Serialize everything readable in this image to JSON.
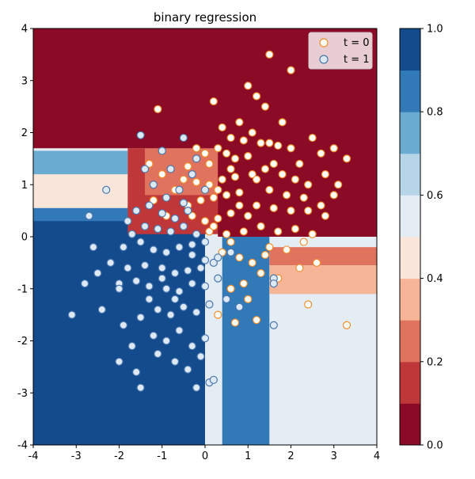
{
  "chart_data": {
    "type": "scatter",
    "title": "binary regression",
    "xlim": [
      -4,
      4
    ],
    "ylim": [
      -4,
      4
    ],
    "xticks": [
      "-4",
      "-3",
      "-2",
      "-1",
      "0",
      "1",
      "2",
      "3",
      "4"
    ],
    "yticks": [
      "-4",
      "-3",
      "-2",
      "-1",
      "0",
      "1",
      "2",
      "3",
      "4"
    ],
    "grid": false,
    "legend_position": "top-right",
    "background": {
      "type": "filled-contour",
      "levels": [
        0.0,
        0.1,
        0.2,
        0.3,
        0.4,
        0.5,
        0.6,
        0.7,
        0.8,
        0.9,
        1.0
      ],
      "colors": [
        "#8b0a25",
        "#c0373a",
        "#e0735e",
        "#f7b597",
        "#fae5da",
        "#e3edf3",
        "#b7d5e8",
        "#6aabd2",
        "#3279b8",
        "#144b8d"
      ],
      "regions": [
        {
          "x": [
            -4,
            4
          ],
          "y": [
            -4,
            4
          ],
          "p": 0.55
        },
        {
          "x": [
            -4,
            0
          ],
          "y": [
            -4,
            0.6
          ],
          "p": 0.95
        },
        {
          "x": [
            0.4,
            1.5
          ],
          "y": [
            -4,
            0
          ],
          "p": 0.85
        },
        {
          "x": [
            1.5,
            4
          ],
          "y": [
            -4,
            0
          ],
          "p": 0.52
        },
        {
          "x": [
            1.5,
            4
          ],
          "y": [
            -0.55,
            -0.2
          ],
          "p": 0.2
        },
        {
          "x": [
            1.5,
            4
          ],
          "y": [
            -1.1,
            -0.55
          ],
          "p": 0.3
        },
        {
          "x": [
            -4,
            0.3
          ],
          "y": [
            0.3,
            0.55
          ],
          "p": 0.85
        },
        {
          "x": [
            -4,
            -1.8
          ],
          "y": [
            0.55,
            1.2
          ],
          "p": 0.45
        },
        {
          "x": [
            -4,
            -1.8
          ],
          "y": [
            1.2,
            1.65
          ],
          "p": 0.75
        },
        {
          "x": [
            -1.8,
            4
          ],
          "y": [
            0.05,
            1.7
          ],
          "p": 0.1
        },
        {
          "x": [
            -1.4,
            0.3
          ],
          "y": [
            0.8,
            1.7
          ],
          "p": 0.25
        },
        {
          "x": [
            -4,
            4
          ],
          "y": [
            1.7,
            4
          ],
          "p": 0.02
        },
        {
          "x": [
            0.3,
            4
          ],
          "y": [
            0.0,
            2.0
          ],
          "p": 0.02
        }
      ]
    },
    "series": [
      {
        "name": "t = 0",
        "color": "#f28e2b",
        "fill": "#ffffff",
        "points": [
          [
            1.5,
            3.5
          ],
          [
            2.0,
            3.2
          ],
          [
            1.0,
            2.9
          ],
          [
            1.2,
            2.7
          ],
          [
            0.2,
            2.6
          ],
          [
            1.4,
            2.5
          ],
          [
            -1.1,
            2.45
          ],
          [
            0.8,
            2.2
          ],
          [
            1.8,
            2.2
          ],
          [
            0.4,
            2.1
          ],
          [
            1.1,
            2.0
          ],
          [
            0.6,
            1.9
          ],
          [
            0.9,
            1.85
          ],
          [
            1.3,
            1.8
          ],
          [
            1.7,
            1.75
          ],
          [
            0.3,
            1.7
          ],
          [
            2.0,
            1.7
          ],
          [
            0.5,
            1.6
          ],
          [
            1.0,
            1.55
          ],
          [
            0.7,
            1.5
          ],
          [
            1.6,
            1.4
          ],
          [
            2.5,
            1.9
          ],
          [
            2.7,
            1.6
          ],
          [
            3.0,
            1.7
          ],
          [
            3.3,
            1.5
          ],
          [
            -0.2,
            1.7
          ],
          [
            0.0,
            1.6
          ],
          [
            1.4,
            1.3
          ],
          [
            1.8,
            1.2
          ],
          [
            2.1,
            1.1
          ],
          [
            2.4,
            1.0
          ],
          [
            2.8,
            1.2
          ],
          [
            3.1,
            1.0
          ],
          [
            1.1,
            1.2
          ],
          [
            0.7,
            1.15
          ],
          [
            0.4,
            1.1
          ],
          [
            0.1,
            1.0
          ],
          [
            -0.2,
            1.05
          ],
          [
            -0.5,
            1.1
          ],
          [
            1.5,
            0.9
          ],
          [
            1.9,
            0.8
          ],
          [
            2.3,
            0.75
          ],
          [
            2.7,
            0.6
          ],
          [
            3.0,
            0.8
          ],
          [
            0.8,
            0.85
          ],
          [
            0.5,
            0.8
          ],
          [
            0.2,
            0.75
          ],
          [
            -0.1,
            0.7
          ],
          [
            1.2,
            0.6
          ],
          [
            1.6,
            0.55
          ],
          [
            2.0,
            0.5
          ],
          [
            2.4,
            0.5
          ],
          [
            2.8,
            0.4
          ],
          [
            1.0,
            0.4
          ],
          [
            0.6,
            0.45
          ],
          [
            0.3,
            0.35
          ],
          [
            -0.3,
            0.4
          ],
          [
            1.3,
            0.2
          ],
          [
            1.7,
            0.1
          ],
          [
            2.1,
            0.15
          ],
          [
            2.5,
            0.05
          ],
          [
            0.9,
            0.1
          ],
          [
            0.5,
            0.05
          ],
          [
            0.1,
            0.1
          ],
          [
            1.5,
            -0.2
          ],
          [
            1.9,
            -0.25
          ],
          [
            2.3,
            -0.1
          ],
          [
            1.1,
            -0.5
          ],
          [
            0.8,
            -0.4
          ],
          [
            0.4,
            -0.3
          ],
          [
            1.3,
            -0.7
          ],
          [
            1.7,
            -0.8
          ],
          [
            2.2,
            -0.6
          ],
          [
            1.0,
            -1.2
          ],
          [
            0.6,
            -1.0
          ],
          [
            0.3,
            -1.5
          ],
          [
            1.2,
            -1.6
          ],
          [
            0.7,
            -1.65
          ],
          [
            2.4,
            -1.3
          ],
          [
            3.3,
            -1.7
          ],
          [
            -1.3,
            1.4
          ],
          [
            -1.0,
            1.2
          ],
          [
            -0.7,
            0.9
          ],
          [
            -0.4,
            0.6
          ],
          [
            0.0,
            0.3
          ],
          [
            -1.2,
            0.7
          ],
          [
            -0.9,
            0.4
          ],
          [
            0.2,
            0.2
          ],
          [
            0.6,
            -0.1
          ],
          [
            1.4,
            -0.35
          ],
          [
            2.6,
            -0.5
          ],
          [
            0.9,
            -0.9
          ],
          [
            1.5,
            1.8
          ],
          [
            0.1,
            1.4
          ],
          [
            0.6,
            1.3
          ],
          [
            -0.4,
            1.35
          ],
          [
            2.2,
            1.4
          ],
          [
            1.2,
            1.1
          ],
          [
            0.3,
            0.9
          ],
          [
            0.8,
            0.6
          ]
        ]
      },
      {
        "name": "t = 1",
        "color": "#4a76ad",
        "fill": "#dde9f5",
        "points": [
          [
            -1.5,
            1.95
          ],
          [
            -1.0,
            1.65
          ],
          [
            -0.5,
            1.9
          ],
          [
            -0.8,
            1.3
          ],
          [
            -0.3,
            1.2
          ],
          [
            -1.2,
            1.0
          ],
          [
            -0.6,
            0.9
          ],
          [
            -0.9,
            0.75
          ],
          [
            -1.3,
            0.6
          ],
          [
            -0.4,
            0.5
          ],
          [
            -1.6,
            0.5
          ],
          [
            -1.0,
            0.45
          ],
          [
            -0.7,
            0.35
          ],
          [
            -2.3,
            0.9
          ],
          [
            -2.7,
            0.4
          ],
          [
            -1.8,
            0.3
          ],
          [
            -1.4,
            0.2
          ],
          [
            -1.1,
            0.15
          ],
          [
            -0.8,
            0.1
          ],
          [
            -0.5,
            0.2
          ],
          [
            -0.2,
            0.05
          ],
          [
            -1.9,
            -0.2
          ],
          [
            -1.5,
            -0.1
          ],
          [
            -1.2,
            -0.25
          ],
          [
            -0.9,
            -0.3
          ],
          [
            -0.6,
            -0.2
          ],
          [
            -0.3,
            -0.35
          ],
          [
            0.0,
            -0.1
          ],
          [
            -2.2,
            -0.5
          ],
          [
            -1.8,
            -0.6
          ],
          [
            -1.4,
            -0.55
          ],
          [
            -1.0,
            -0.6
          ],
          [
            -0.7,
            -0.7
          ],
          [
            -0.4,
            -0.65
          ],
          [
            -0.1,
            -0.6
          ],
          [
            0.2,
            -0.5
          ],
          [
            -2.5,
            -0.7
          ],
          [
            -2.0,
            -0.9
          ],
          [
            -1.6,
            -0.85
          ],
          [
            -1.3,
            -0.95
          ],
          [
            -0.9,
            -1.0
          ],
          [
            -0.6,
            -1.05
          ],
          [
            -0.3,
            -0.9
          ],
          [
            0.0,
            -0.95
          ],
          [
            0.3,
            -0.8
          ],
          [
            -3.1,
            -1.5
          ],
          [
            -2.4,
            -1.4
          ],
          [
            -1.9,
            -1.7
          ],
          [
            -1.5,
            -1.55
          ],
          [
            -1.1,
            -1.4
          ],
          [
            -0.8,
            -1.5
          ],
          [
            -0.5,
            -1.35
          ],
          [
            -0.2,
            -1.45
          ],
          [
            0.1,
            -1.3
          ],
          [
            -1.7,
            -2.1
          ],
          [
            -1.2,
            -1.9
          ],
          [
            -0.9,
            -2.0
          ],
          [
            -0.6,
            -1.8
          ],
          [
            -0.3,
            -2.1
          ],
          [
            0.0,
            -1.95
          ],
          [
            -2.0,
            -2.4
          ],
          [
            -1.6,
            -2.6
          ],
          [
            -1.1,
            -2.25
          ],
          [
            -0.7,
            -2.4
          ],
          [
            -0.4,
            -2.55
          ],
          [
            -0.1,
            -2.3
          ],
          [
            -1.5,
            -2.9
          ],
          [
            -0.2,
            -2.9
          ],
          [
            0.1,
            -2.8
          ],
          [
            0.2,
            -2.75
          ],
          [
            1.6,
            -0.8
          ],
          [
            1.6,
            -0.9
          ],
          [
            1.6,
            -1.7
          ],
          [
            0.8,
            -1.35
          ],
          [
            0.5,
            -1.2
          ],
          [
            0.3,
            -0.4
          ],
          [
            0.6,
            -0.3
          ],
          [
            -1.4,
            1.3
          ],
          [
            -0.2,
            1.5
          ],
          [
            0.0,
            0.9
          ],
          [
            -0.5,
            0.65
          ],
          [
            -1.7,
            0.05
          ],
          [
            -2.6,
            -0.2
          ],
          [
            -2.0,
            -1.0
          ],
          [
            -1.0,
            -0.8
          ],
          [
            -0.3,
            -0.15
          ],
          [
            0.0,
            -0.45
          ],
          [
            -2.8,
            -0.9
          ],
          [
            -1.3,
            -1.2
          ],
          [
            -0.7,
            -1.2
          ]
        ]
      }
    ],
    "colorbar": {
      "ticks": [
        "0.0",
        "0.2",
        "0.4",
        "0.6",
        "0.8",
        "1.0"
      ]
    }
  }
}
